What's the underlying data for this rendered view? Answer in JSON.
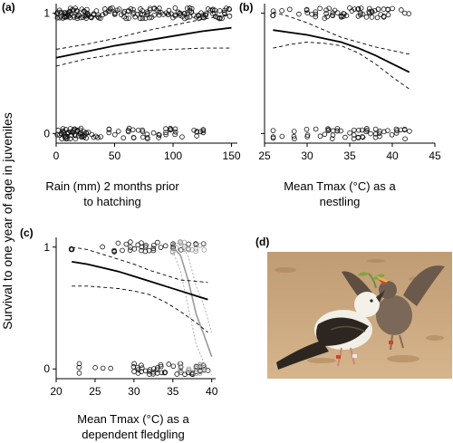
{
  "figure": {
    "ylabel": "Survival to one year of age in juveniles"
  },
  "chart_data": [
    {
      "type": "scatter",
      "panel_label": "(a)",
      "xlabel": [
        "Rain (mm) 2 months prior",
        "to hatching"
      ],
      "xlim": [
        0,
        155
      ],
      "ylim": [
        -0.08,
        1.08
      ],
      "xticks": [
        0,
        50,
        100,
        150
      ],
      "xtick_labels": [
        "0",
        "50",
        "100",
        "150"
      ],
      "yticks": [
        0,
        1
      ],
      "ytick_labels": [
        "0",
        "1"
      ],
      "fit": {
        "x": [
          0,
          25,
          50,
          75,
          100,
          125,
          150
        ],
        "y": [
          0.63,
          0.68,
          0.73,
          0.77,
          0.81,
          0.85,
          0.88
        ],
        "ci_lower": [
          0.56,
          0.62,
          0.66,
          0.69,
          0.7,
          0.71,
          0.71
        ],
        "ci_upper": [
          0.7,
          0.74,
          0.79,
          0.85,
          0.9,
          0.95,
          0.99
        ]
      },
      "points_survived_x": [
        1,
        3,
        4,
        5,
        6,
        7,
        8,
        9,
        10,
        11,
        12,
        13,
        14,
        15,
        16,
        17,
        18,
        19,
        20,
        21,
        22,
        23,
        24,
        25,
        26,
        27,
        28,
        30,
        32,
        34,
        36,
        38,
        40,
        42,
        44,
        46,
        48,
        50,
        52,
        54,
        56,
        58,
        60,
        62,
        64,
        66,
        68,
        70,
        72,
        74,
        76,
        78,
        80,
        82,
        84,
        86,
        88,
        90,
        92,
        94,
        96,
        98,
        100,
        102,
        104,
        106,
        108,
        110,
        112,
        114,
        116,
        118,
        120,
        122,
        124,
        126,
        128,
        130,
        132,
        134,
        136,
        138,
        140,
        142,
        144,
        146,
        148
      ],
      "points_died_x": [
        1,
        2,
        3,
        5,
        6,
        7,
        8,
        9,
        10,
        11,
        12,
        13,
        14,
        15,
        16,
        17,
        18,
        19,
        20,
        21,
        22,
        24,
        26,
        28,
        30,
        32,
        34,
        36,
        38,
        45,
        50,
        53,
        58,
        62,
        66,
        70,
        74,
        78,
        83,
        88,
        94,
        98,
        102,
        108,
        118,
        120,
        123,
        126
      ]
    },
    {
      "type": "scatter",
      "panel_label": "(b)",
      "xlabel": [
        "Mean Tmax (°C) as a",
        "nestling"
      ],
      "xlim": [
        25,
        45
      ],
      "ylim": [
        -0.08,
        1.08
      ],
      "xticks": [
        25,
        30,
        35,
        40,
        45
      ],
      "xtick_labels": [
        "25",
        "30",
        "35",
        "40",
        "45"
      ],
      "yticks": [
        0,
        1
      ],
      "ytick_labels": [
        "",
        ""
      ],
      "fit": {
        "x": [
          26,
          28,
          30,
          32,
          34,
          36,
          38,
          40,
          42
        ],
        "y": [
          0.86,
          0.84,
          0.82,
          0.79,
          0.76,
          0.71,
          0.65,
          0.58,
          0.51
        ],
        "ci_lower": [
          0.71,
          0.74,
          0.76,
          0.75,
          0.73,
          0.67,
          0.58,
          0.47,
          0.37
        ],
        "ci_upper": [
          1.01,
          0.97,
          0.92,
          0.86,
          0.8,
          0.76,
          0.72,
          0.69,
          0.66
        ]
      },
      "points_survived_x": [
        26,
        27,
        28,
        29,
        30,
        30.5,
        31,
        31.5,
        32,
        32.3,
        32.6,
        33,
        33.3,
        33.6,
        34,
        34.3,
        34.6,
        35,
        35.3,
        35.6,
        36,
        36.3,
        36.6,
        37,
        37.3,
        37.6,
        38,
        38.3,
        38.6,
        39,
        39.5,
        40,
        41,
        41.5,
        42
      ],
      "points_died_x": [
        26,
        27,
        28.5,
        30,
        31,
        31.5,
        32,
        32.5,
        33,
        33.5,
        34,
        34.5,
        35,
        35.5,
        36,
        36.5,
        37,
        37.5,
        38,
        38.5,
        39,
        39.5,
        40,
        40.5,
        41,
        41.5,
        42
      ]
    },
    {
      "type": "scatter",
      "panel_label": "(c)",
      "xlabel": [
        "Mean Tmax (°C) as a",
        "dependent fledgling"
      ],
      "xlim": [
        20,
        40.5
      ],
      "ylim": [
        -0.08,
        1.08
      ],
      "xticks": [
        20,
        25,
        30,
        35,
        40
      ],
      "xtick_labels": [
        "20",
        "25",
        "30",
        "35",
        "40"
      ],
      "yticks": [
        0,
        1
      ],
      "ytick_labels": [
        "0",
        "1"
      ],
      "fit": {
        "x": [
          22,
          24,
          26,
          28,
          30,
          32,
          34,
          36,
          38,
          39.5
        ],
        "y": [
          0.88,
          0.86,
          0.83,
          0.8,
          0.76,
          0.72,
          0.68,
          0.64,
          0.6,
          0.57
        ],
        "ci_lower": [
          0.68,
          0.68,
          0.67,
          0.66,
          0.64,
          0.61,
          0.55,
          0.47,
          0.38,
          0.3
        ],
        "ci_upper": [
          1.0,
          0.98,
          0.94,
          0.9,
          0.86,
          0.81,
          0.77,
          0.73,
          0.72,
          0.71
        ]
      },
      "fit_second": {
        "x": [
          35,
          36,
          37,
          38,
          39,
          40
        ],
        "y": [
          1.0,
          0.93,
          0.72,
          0.45,
          0.28,
          0.1
        ],
        "ci_lower": [
          0.97,
          0.8,
          0.5,
          0.2,
          0.05,
          -0.05
        ],
        "ci_upper": [
          1.03,
          1.03,
          0.92,
          0.68,
          0.52,
          0.3
        ]
      },
      "points_survived_x": [
        22,
        26,
        27.5,
        28,
        28.5,
        29,
        29.5,
        30,
        30.5,
        31,
        31.5,
        32,
        32.5,
        33,
        33.5,
        34,
        35,
        36,
        37,
        38,
        39
      ],
      "points_survived_grey_x": [
        35,
        35.5,
        36,
        36.5,
        37,
        37.5,
        38,
        38.5,
        39
      ],
      "points_died_x": [
        23,
        25,
        26,
        27,
        30,
        30.5,
        31,
        31.5,
        32,
        32.5,
        33,
        33.5,
        34,
        34.5,
        35,
        35.5,
        36,
        36.5,
        37,
        37.5,
        38,
        38.5,
        39,
        39.5
      ],
      "points_died_grey_x": [
        36,
        37,
        38,
        38.5,
        39
      ]
    }
  ],
  "photo": {
    "panel_label": "(d)",
    "colors": {
      "ground": "#c9a47a",
      "ground_dark": "#a98257",
      "adult_head": "#f2efe6",
      "wing": "#2d2620",
      "chick": "#6b5a4c",
      "leg_band": "#d1422f"
    }
  }
}
